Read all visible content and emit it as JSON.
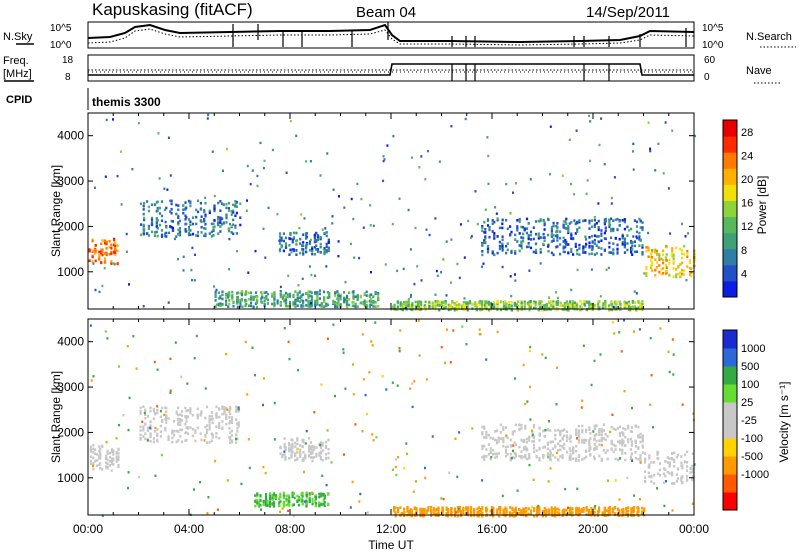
{
  "header": {
    "station": "Kapuskasing (fitACF)",
    "beam": "Beam 04",
    "date": "14/Sep/2011"
  },
  "noise_panel": {
    "left_label": "N.Sky",
    "left_ticks": [
      "10^5",
      "10^0"
    ],
    "right_label": "N.Search",
    "right_ticks": [
      "10^5",
      "10^0"
    ]
  },
  "freq_panel": {
    "left_label_1": "Freq.",
    "left_label_2": "[MHz]",
    "left_ticks": [
      "18",
      "8"
    ],
    "right_label": "Nave",
    "right_ticks": [
      "60",
      "0"
    ]
  },
  "cpid": {
    "label": "CPID",
    "value": "themis 3300"
  },
  "colors": {
    "power_scale": [
      "#0a1ee6",
      "#2350c8",
      "#2f7fa4",
      "#3fa07a",
      "#58b85a",
      "#8fd23a",
      "#f2e00a",
      "#ffb000",
      "#ff7a00",
      "#ff2a00",
      "#e60000"
    ],
    "velocity_scale": [
      "#ff0000",
      "#ff5a00",
      "#ff9a00",
      "#ffd200",
      "#c8c8c8",
      "#c8c8c8",
      "#66dd33",
      "#33aa44",
      "#2b6ad6",
      "#1a2bd0"
    ],
    "ground_scatter": "#c8c8c8"
  },
  "chart_data": [
    {
      "type": "heatmap",
      "title": "Power",
      "ylabel": "Slant Range [km]",
      "xlabel": "Time UT",
      "x_range": [
        "00:00",
        "24:00"
      ],
      "ylim": [
        180,
        4500
      ],
      "yticks": [
        1000,
        2000,
        3000,
        4000
      ],
      "colorbar": {
        "label": "Power [dB]",
        "ticks": [
          4,
          8,
          12,
          16,
          20,
          24,
          28
        ],
        "range": [
          0,
          30
        ]
      },
      "echo_regions": [
        {
          "t_start": 0.0,
          "t_end": 1.2,
          "range_min": 1200,
          "range_max": 1750,
          "value": 24
        },
        {
          "t_start": 2.0,
          "t_end": 6.0,
          "range_min": 1800,
          "range_max": 2600,
          "value": 6
        },
        {
          "t_start": 5.0,
          "t_end": 11.5,
          "range_min": 250,
          "range_max": 600,
          "value": 10
        },
        {
          "t_start": 7.5,
          "t_end": 9.5,
          "range_min": 1400,
          "range_max": 1900,
          "value": 5
        },
        {
          "t_start": 12.0,
          "t_end": 22.0,
          "range_min": 180,
          "range_max": 380,
          "value": 14
        },
        {
          "t_start": 15.5,
          "t_end": 22.0,
          "range_min": 1400,
          "range_max": 2200,
          "value": 5
        },
        {
          "t_start": 22.0,
          "t_end": 24.0,
          "range_min": 900,
          "range_max": 1600,
          "value": 20
        }
      ]
    },
    {
      "type": "heatmap",
      "title": "Velocity",
      "ylabel": "Slant Range [km]",
      "xlabel": "Time UT",
      "x_range": [
        "00:00",
        "24:00"
      ],
      "ylim": [
        180,
        4500
      ],
      "yticks": [
        1000,
        2000,
        3000,
        4000
      ],
      "xticks": [
        "00:00",
        "04:00",
        "08:00",
        "12:00",
        "16:00",
        "20:00",
        "00:00"
      ],
      "colorbar": {
        "label": "Velocity [m s⁻¹]",
        "ticks": [
          1000,
          500,
          100,
          25,
          -25,
          -100,
          -500,
          -1000
        ]
      },
      "echo_regions": [
        {
          "t_start": 0.0,
          "t_end": 1.2,
          "range_min": 1200,
          "range_max": 1750,
          "value": 0
        },
        {
          "t_start": 2.0,
          "t_end": 6.0,
          "range_min": 1800,
          "range_max": 2600,
          "value": 0
        },
        {
          "t_start": 6.5,
          "t_end": 9.5,
          "range_min": 400,
          "range_max": 700,
          "value": 100
        },
        {
          "t_start": 7.5,
          "t_end": 9.5,
          "range_min": 1400,
          "range_max": 1900,
          "value": 0
        },
        {
          "t_start": 12.0,
          "t_end": 22.0,
          "range_min": 180,
          "range_max": 380,
          "value": -150
        },
        {
          "t_start": 15.5,
          "t_end": 22.0,
          "range_min": 1400,
          "range_max": 2200,
          "value": 0
        },
        {
          "t_start": 22.0,
          "t_end": 24.0,
          "range_min": 900,
          "range_max": 1600,
          "value": 0
        }
      ]
    }
  ]
}
